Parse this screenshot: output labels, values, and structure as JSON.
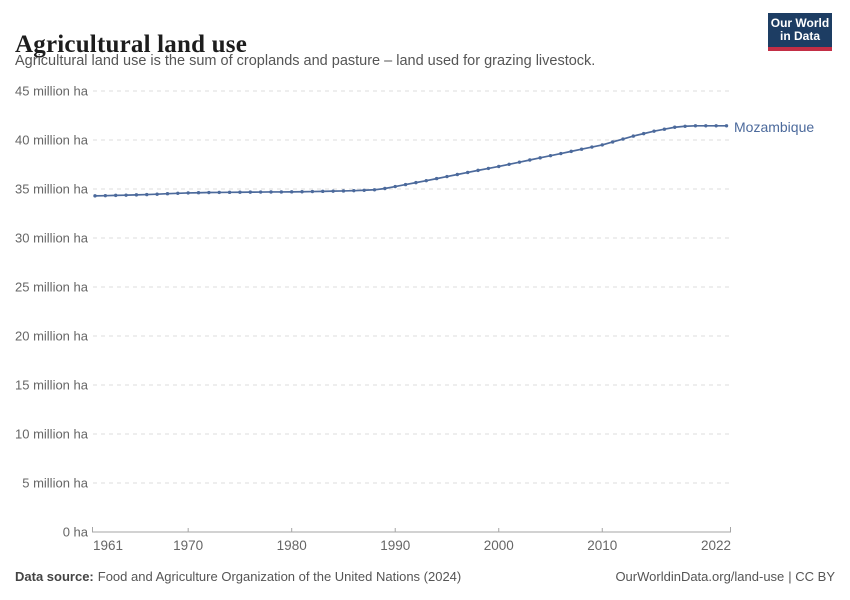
{
  "header": {
    "title": "Agricultural land use",
    "subtitle": "Agricultural land use is the sum of croplands and pasture – land used for grazing livestock."
  },
  "logo": {
    "line1": "Our World",
    "line2": "in Data",
    "bg_color": "#1d3d63",
    "stripe_color": "#c32e45"
  },
  "footer": {
    "source_label": "Data source:",
    "source_text": "Food and Agriculture Organization of the United Nations (2024)",
    "link": "OurWorldinData.org/land-use",
    "license": "| CC BY"
  },
  "chart_data": {
    "type": "line",
    "title": "Agricultural land use",
    "entity": "Mozambique",
    "unit": "million ha",
    "ylim": [
      0,
      45
    ],
    "grid": "horizontal dashed",
    "legend": "end-of-line label",
    "colors": {
      "line": "#4C6A9C",
      "grid": "#dcdcdc",
      "axis": "#a5a5a5",
      "tick_text": "#666666"
    },
    "x": [
      1961,
      1962,
      1963,
      1964,
      1965,
      1966,
      1967,
      1968,
      1969,
      1970,
      1971,
      1972,
      1973,
      1974,
      1975,
      1976,
      1977,
      1978,
      1979,
      1980,
      1981,
      1982,
      1983,
      1984,
      1985,
      1986,
      1987,
      1988,
      1989,
      1990,
      1991,
      1992,
      1993,
      1994,
      1995,
      1996,
      1997,
      1998,
      1999,
      2000,
      2001,
      2002,
      2003,
      2004,
      2005,
      2006,
      2007,
      2008,
      2009,
      2010,
      2011,
      2012,
      2013,
      2014,
      2015,
      2016,
      2017,
      2018,
      2019,
      2020,
      2021,
      2022
    ],
    "series": [
      {
        "name": "Mozambique",
        "color": "#4C6A9C",
        "values": [
          34.3,
          34.32,
          34.35,
          34.37,
          34.4,
          34.43,
          34.47,
          34.52,
          34.56,
          34.6,
          34.62,
          34.64,
          34.65,
          34.66,
          34.67,
          34.68,
          34.69,
          34.7,
          34.7,
          34.71,
          34.72,
          34.74,
          34.76,
          34.78,
          34.8,
          34.83,
          34.87,
          34.92,
          35.05,
          35.25,
          35.45,
          35.65,
          35.85,
          36.06,
          36.27,
          36.48,
          36.69,
          36.9,
          37.1,
          37.3,
          37.52,
          37.74,
          37.96,
          38.18,
          38.4,
          38.62,
          38.84,
          39.06,
          39.28,
          39.5,
          39.8,
          40.1,
          40.4,
          40.65,
          40.9,
          41.1,
          41.3,
          41.4,
          41.45,
          41.45,
          41.45,
          41.45
        ]
      }
    ],
    "yticks": [
      {
        "value": 0,
        "label": "0 ha"
      },
      {
        "value": 5,
        "label": "5 million ha"
      },
      {
        "value": 10,
        "label": "10 million ha"
      },
      {
        "value": 15,
        "label": "15 million ha"
      },
      {
        "value": 20,
        "label": "20 million ha"
      },
      {
        "value": 25,
        "label": "25 million ha"
      },
      {
        "value": 30,
        "label": "30 million ha"
      },
      {
        "value": 35,
        "label": "35 million ha"
      },
      {
        "value": 40,
        "label": "40 million ha"
      },
      {
        "value": 45,
        "label": "45 million ha"
      }
    ],
    "xticks": [
      {
        "value": 1961,
        "label": "1961"
      },
      {
        "value": 1970,
        "label": "1970"
      },
      {
        "value": 1980,
        "label": "1980"
      },
      {
        "value": 1990,
        "label": "1990"
      },
      {
        "value": 2000,
        "label": "2000"
      },
      {
        "value": 2010,
        "label": "2010"
      },
      {
        "value": 2022,
        "label": "2022"
      }
    ]
  }
}
